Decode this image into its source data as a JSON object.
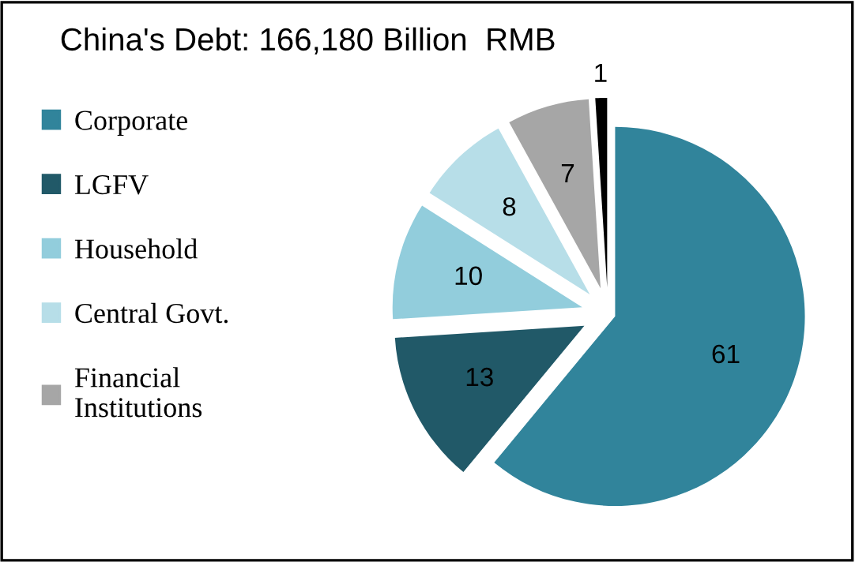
{
  "chart_data": {
    "type": "pie",
    "title": "China's Debt: 166,180 Billion  RMB",
    "categories": [
      "Corporate",
      "LGFV",
      "Household",
      "Central Govt.",
      "Financial\nInstitutions",
      null
    ],
    "values": [
      61,
      13,
      10,
      8,
      7,
      1
    ],
    "colors": [
      "#31849b",
      "#215968",
      "#92cddc",
      "#b7dee8",
      "#a6a6a6",
      "#000000"
    ],
    "data_labels": true,
    "legend": "left"
  }
}
